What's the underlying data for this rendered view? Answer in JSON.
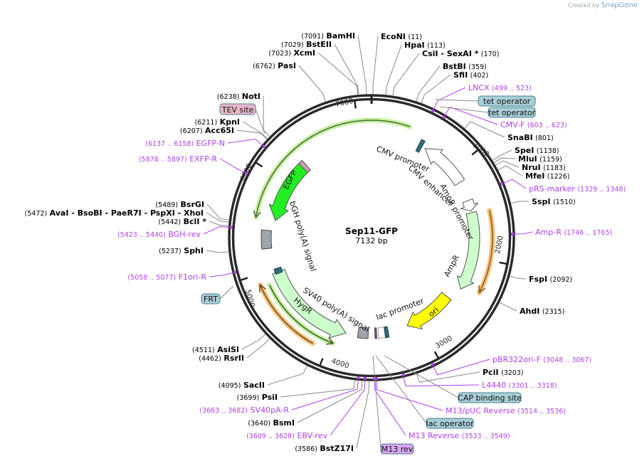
{
  "credit": {
    "prefix": "Created by",
    "brand": "SnapGene"
  },
  "plasmid": {
    "name": "Sep11-GFP",
    "length": "7132 bp",
    "total_bp": 7132
  },
  "ticks": [
    "1000",
    "2000",
    "3000",
    "4000",
    "5000",
    "6000",
    "7000"
  ],
  "enzymes": [
    {
      "name": "EcoNI",
      "pos": "(11)",
      "site": 11
    },
    {
      "name": "HpaI",
      "pos": "(113)",
      "site": 113
    },
    {
      "name": "CsiI  - SexAI *",
      "pos": "(170)",
      "site": 170
    },
    {
      "name": "BstBI",
      "pos": "(359)",
      "site": 359
    },
    {
      "name": "SfiI",
      "pos": "(402)",
      "site": 402
    },
    {
      "name": "SnaBI",
      "pos": "(801)",
      "site": 801
    },
    {
      "name": "SpeI",
      "pos": "(1138)",
      "site": 1138
    },
    {
      "name": "MluI",
      "pos": "(1159)",
      "site": 1159
    },
    {
      "name": "NruI",
      "pos": "(1183)",
      "site": 1183
    },
    {
      "name": "MfeI",
      "pos": "(1226)",
      "site": 1226
    },
    {
      "name": "SspI",
      "pos": "(1510)",
      "site": 1510
    },
    {
      "name": "FspI",
      "pos": "(2092)",
      "site": 2092
    },
    {
      "name": "AhdI",
      "pos": "(2315)",
      "site": 2315
    },
    {
      "name": "PciI",
      "pos": "(3203)",
      "site": 3203
    },
    {
      "name": "BamHI",
      "pos": "(7091)",
      "site": 7091
    },
    {
      "name": "BstEII",
      "pos": "(7029)",
      "site": 7029
    },
    {
      "name": "XcmI",
      "pos": "(7023)",
      "site": 7023
    },
    {
      "name": "PasI",
      "pos": "(6762)",
      "site": 6762
    },
    {
      "name": "NotI",
      "pos": "(6238)",
      "site": 6238
    },
    {
      "name": "KpnI",
      "pos": "(6211)",
      "site": 6211
    },
    {
      "name": "Acc65I",
      "pos": "(6207)",
      "site": 6207
    },
    {
      "name": "BsrGI",
      "pos": "(5489)",
      "site": 5489
    },
    {
      "name": "AvaI   - BsoBI   - PaeR7I   - PspXI   - XhoI",
      "pos": "(5472)",
      "site": 5472
    },
    {
      "name": "BclI *",
      "pos": "(5442)",
      "site": 5442
    },
    {
      "name": "SphI",
      "pos": "(5237)",
      "site": 5237
    },
    {
      "name": "AsiSI",
      "pos": "(4511)",
      "site": 4511
    },
    {
      "name": "RsrII",
      "pos": "(4462)",
      "site": 4462
    },
    {
      "name": "SacII",
      "pos": "(4095)",
      "site": 4095
    },
    {
      "name": "PsiI",
      "pos": "(3699)",
      "site": 3699
    },
    {
      "name": "BsmI",
      "pos": "(3640)",
      "site": 3640
    },
    {
      "name": "BstZ17I",
      "pos": "(3586)",
      "site": 3586
    }
  ],
  "primers": [
    {
      "name": "LNCX",
      "range": "(499 .. 523)",
      "site": 511
    },
    {
      "name": "CMV-F",
      "range": "(603 .. 623)",
      "site": 613
    },
    {
      "name": "pRS-marker",
      "range": "(1329 .. 1348)",
      "site": 1338
    },
    {
      "name": "Amp-R",
      "range": "(1746 .. 1765)",
      "site": 1755
    },
    {
      "name": "pBR322ori-F",
      "range": "(3048 .. 3067)",
      "site": 3057
    },
    {
      "name": "L4440",
      "range": "(3301 .. 3318)",
      "site": 3310
    },
    {
      "name": "M13/pUC Reverse",
      "range": "(3514 .. 3536)",
      "site": 3525
    },
    {
      "name": "M13 Reverse",
      "range": "(3533 .. 3549)",
      "site": 3541
    },
    {
      "name": "EGFP-N",
      "range": "(6137 .. 6158)",
      "site": 6147
    },
    {
      "name": "EXFP-R",
      "range": "(5878 .. 5897)",
      "site": 5887
    },
    {
      "name": "BGH-rev",
      "range": "(5423 .. 5440)",
      "site": 5431
    },
    {
      "name": "F1ori-R",
      "range": "(5058 .. 5077)",
      "site": 5067
    },
    {
      "name": "SV40pA-R",
      "range": "(3663 .. 3682)",
      "site": 3672
    },
    {
      "name": "EBV-rev",
      "range": "(3609 .. 3628)",
      "site": 3618
    }
  ],
  "feature_boxes": [
    {
      "name": "tet operator",
      "color": "#a9cfd8"
    },
    {
      "name": "tet operator",
      "color": "#a9cfd8"
    },
    {
      "name": "TEV site",
      "color": "#e8b6c8"
    },
    {
      "name": "FRT",
      "color": "#a9cfd8"
    },
    {
      "name": "CAP binding site",
      "color": "#a9cfd8"
    },
    {
      "name": "lac operator",
      "color": "#a9cfd8"
    },
    {
      "name": "M13 rev",
      "color": "#d9a6f0"
    }
  ],
  "features": {
    "cmv_promoter": "CMV promoter",
    "cmv_enhancer": "CMV enhancer",
    "ampr_promoter": "AmpR promoter",
    "ampr": "AmpR",
    "ori": "ori",
    "lac_promoter": "lac promoter",
    "sv40": "SV40 poly(A) signal",
    "hygr": "HygR",
    "bgh": "bGH poly(A) signal",
    "egfp": "EGFP"
  },
  "colors": {
    "primer": "#b140f0",
    "egfp": "#22ee22",
    "ori": "#ffff00",
    "light_green": "#ccffcc",
    "orange": "#f5c07a",
    "teal": "#2d6e7e",
    "polyA": "#a0a4ac"
  }
}
